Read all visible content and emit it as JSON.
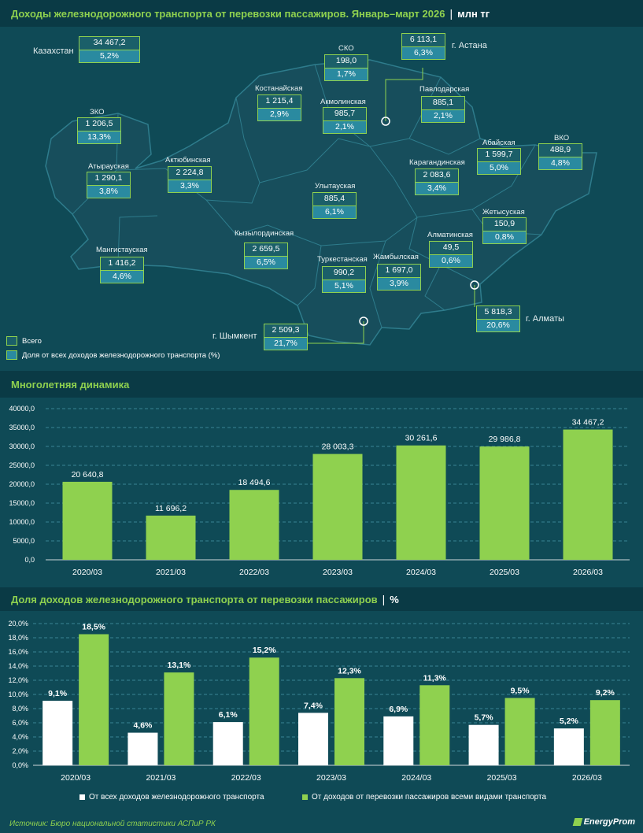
{
  "header1": {
    "title": "Доходы железнодорожного транспорта от перевозки пассажиров. Январь–март 2026",
    "sep": "|",
    "unit": "млн тг"
  },
  "map": {
    "regions": [
      {
        "name": "Казахстан",
        "total": "34 467,2",
        "share": "5,2%"
      },
      {
        "name": "СКО",
        "total": "198,0",
        "share": "1,7%"
      },
      {
        "name": "г. Астана",
        "total": "6 113,1",
        "share": "6,3%"
      },
      {
        "name": "Костанайская",
        "total": "1 215,4",
        "share": "2,9%"
      },
      {
        "name": "Акмолинская",
        "total": "985,7",
        "share": "2,1%"
      },
      {
        "name": "Павлодарская",
        "total": "885,1",
        "share": "2,1%"
      },
      {
        "name": "ЗКО",
        "total": "1 206,5",
        "share": "13,3%"
      },
      {
        "name": "Абайская",
        "total": "1 599,7",
        "share": "5,0%"
      },
      {
        "name": "ВКО",
        "total": "488,9",
        "share": "4,8%"
      },
      {
        "name": "Атырауская",
        "total": "1 290,1",
        "share": "3,8%"
      },
      {
        "name": "Актюбинская",
        "total": "2 224,8",
        "share": "3,3%"
      },
      {
        "name": "Карагандинская",
        "total": "2 083,6",
        "share": "3,4%"
      },
      {
        "name": "Улытауская",
        "total": "885,4",
        "share": "6,1%"
      },
      {
        "name": "Жетысуская",
        "total": "150,9",
        "share": "0,8%"
      },
      {
        "name": "Кызылординская",
        "total": "2 659,5",
        "share": "6,5%"
      },
      {
        "name": "Мангистауская",
        "total": "1 416,2",
        "share": "4,6%"
      },
      {
        "name": "Алматинская",
        "total": "49,5",
        "share": "0,6%"
      },
      {
        "name": "Туркестанская",
        "total": "990,2",
        "share": "5,1%"
      },
      {
        "name": "Жамбылская",
        "total": "1 697,0",
        "share": "3,9%"
      },
      {
        "name": "г. Алматы",
        "total": "5 818,3",
        "share": "20,6%"
      },
      {
        "name": "г. Шымкент",
        "total": "2 509,3",
        "share": "21,7%"
      }
    ],
    "legend_total": "Всего",
    "legend_share": "Доля от всех доходов железнодорожного транспорта (%)"
  },
  "header2": {
    "title": "Многолетняя динамика"
  },
  "header3": {
    "title": "Доля доходов железнодорожного транспорта от перевозки пассажиров",
    "sep": "|",
    "unit": "%"
  },
  "chart_data": [
    {
      "type": "bar",
      "title": "Многолетняя динамика",
      "categories": [
        "2020/03",
        "2021/03",
        "2022/03",
        "2023/03",
        "2024/03",
        "2025/03",
        "2026/03"
      ],
      "values": [
        20640.8,
        11696.2,
        18494.6,
        28003.3,
        30261.6,
        29986.8,
        34467.2
      ],
      "value_labels": [
        "20 640,8",
        "11 696,2",
        "18 494,6",
        "28 003,3",
        "30 261,6",
        "29 986,8",
        "34 467,2"
      ],
      "ylim": [
        0,
        40000
      ],
      "yticks": [
        "0,0",
        "5000,0",
        "10000,0",
        "15000,0",
        "20000,0",
        "25000,0",
        "30000,0",
        "35000,0",
        "40000,0"
      ],
      "color": "#8fd14f"
    },
    {
      "type": "bar",
      "title": "Доля доходов железнодорожного транспорта от перевозки пассажиров",
      "categories": [
        "2020/03",
        "2021/03",
        "2022/03",
        "2023/03",
        "2024/03",
        "2025/03",
        "2026/03"
      ],
      "series": [
        {
          "name": "От всех доходов железнодорожного транспорта",
          "values": [
            9.1,
            4.6,
            6.1,
            7.4,
            6.9,
            5.7,
            5.2
          ],
          "labels": [
            "9,1%",
            "4,6%",
            "6,1%",
            "7,4%",
            "6,9%",
            "5,7%",
            "5,2%"
          ],
          "color": "#ffffff"
        },
        {
          "name": "От доходов от перевозки пассажиров всеми видами транспорта",
          "values": [
            18.5,
            13.1,
            15.2,
            12.3,
            11.3,
            9.5,
            9.2
          ],
          "labels": [
            "18,5%",
            "13,1%",
            "15,2%",
            "12,3%",
            "11,3%",
            "9,5%",
            "9,2%"
          ],
          "color": "#8fd14f"
        }
      ],
      "ylim": [
        0,
        20
      ],
      "yticks": [
        "0,0%",
        "2,0%",
        "4,0%",
        "6,0%",
        "8,0%",
        "10,0%",
        "12,0%",
        "14,0%",
        "16,0%",
        "18,0%",
        "20,0%"
      ]
    }
  ],
  "footer": {
    "source_label": "Источник:",
    "source_text": "Бюро национальной статистики АСПиР РК",
    "logo": "EnergyProm"
  }
}
